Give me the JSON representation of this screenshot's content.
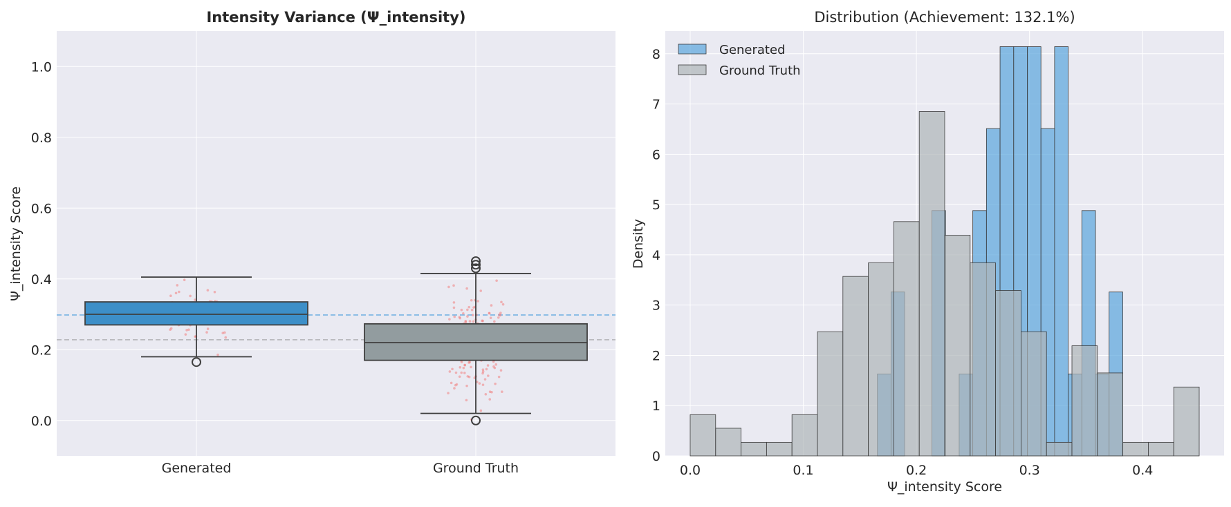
{
  "chart_data": [
    {
      "type": "box",
      "title": "Intensity Variance (Ψ_intensity)",
      "xlabel": "",
      "ylabel": "Ψ_intensity Score",
      "ylim": [
        -0.1,
        1.1
      ],
      "yticks": [
        0.0,
        0.2,
        0.4,
        0.6,
        0.8,
        1.0
      ],
      "ytick_labels": [
        "0.0",
        "0.2",
        "0.4",
        "0.6",
        "0.8",
        "1.0"
      ],
      "grid": true,
      "categories": [
        "Generated",
        "Ground Truth"
      ],
      "colors": {
        "Generated": "#3d8fc8",
        "Ground Truth": "#929c9f",
        "points": "#f08080",
        "mean_generated": "#7fb7e3",
        "mean_ground_truth": "#b9b9bd"
      },
      "boxes": [
        {
          "name": "Generated",
          "whisker_low": 0.18,
          "q1": 0.27,
          "median": 0.3,
          "q3": 0.335,
          "whisker_high": 0.405,
          "outliers": [
            0.165
          ]
        },
        {
          "name": "Ground Truth",
          "whisker_low": 0.02,
          "q1": 0.17,
          "median": 0.22,
          "q3": 0.273,
          "whisker_high": 0.415,
          "outliers": [
            0.0,
            0.43,
            0.44,
            0.45
          ]
        }
      ],
      "reference_lines": [
        {
          "series": "Generated",
          "y": 0.298
        },
        {
          "series": "Ground Truth",
          "y": 0.228
        }
      ]
    },
    {
      "type": "histogram",
      "title": "Distribution (Achievement: 132.1%)",
      "xlabel": "Ψ_intensity Score",
      "ylabel": "Density",
      "xlim": [
        -0.022,
        0.472
      ],
      "ylim": [
        0,
        8.45
      ],
      "xticks": [
        0.0,
        0.1,
        0.2,
        0.3,
        0.4
      ],
      "xtick_labels": [
        "0.0",
        "0.1",
        "0.2",
        "0.3",
        "0.4"
      ],
      "yticks": [
        0,
        1,
        2,
        3,
        4,
        5,
        6,
        7,
        8
      ],
      "ytick_labels": [
        "0",
        "1",
        "2",
        "3",
        "4",
        "5",
        "6",
        "7",
        "8"
      ],
      "grid": true,
      "legend_position": "top-left",
      "series": [
        {
          "name": "Generated",
          "color": "#5aa5dd",
          "bin_start": 0.1655,
          "bin_width": 0.01205,
          "values": [
            1.63,
            3.26,
            0,
            0,
            4.88,
            0,
            1.63,
            4.88,
            6.51,
            8.14,
            8.14,
            8.14,
            6.51,
            8.14,
            1.63,
            4.88,
            1.63,
            3.26
          ]
        },
        {
          "name": "Ground Truth",
          "color": "#aeb5b8",
          "bin_start": 0.0,
          "bin_width": 0.0225,
          "values": [
            0.82,
            0.55,
            0.27,
            0.27,
            0.82,
            2.47,
            3.57,
            3.84,
            4.66,
            6.85,
            4.39,
            3.84,
            3.29,
            2.47,
            0.27,
            2.19,
            1.65,
            0.27,
            0.27,
            1.37
          ]
        }
      ]
    }
  ]
}
